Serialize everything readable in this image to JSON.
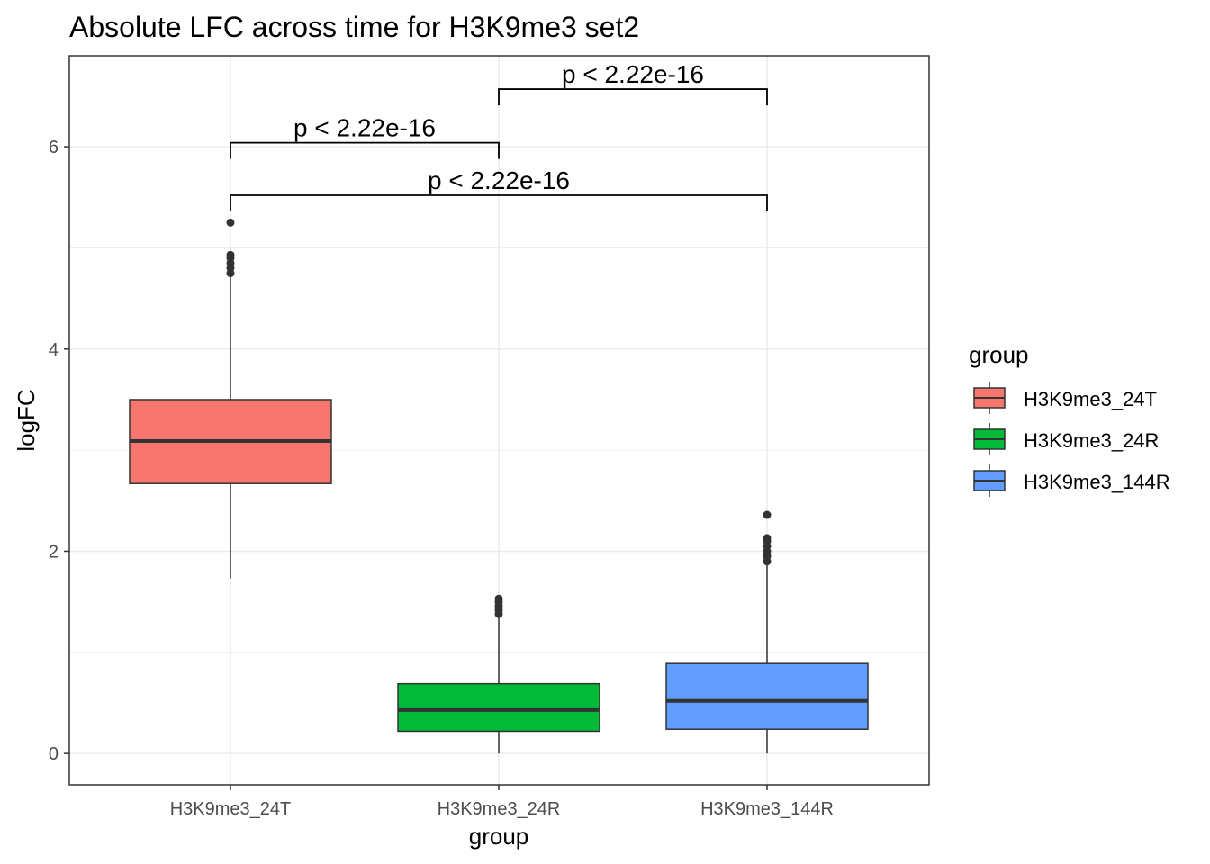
{
  "chart_data": {
    "type": "box",
    "title": "Absolute LFC across time for H3K9me3 set2",
    "xlabel": "group",
    "ylabel": "logFC",
    "ylim": [
      -0.31,
      6.9
    ],
    "yticks": [
      0,
      2,
      4,
      6
    ],
    "grid": true,
    "categories": [
      "H3K9me3_24T",
      "H3K9me3_24R",
      "H3K9me3_144R"
    ],
    "colors": [
      "#F8766D",
      "#00BA38",
      "#619CFF"
    ],
    "boxes": [
      {
        "name": "H3K9me3_24T",
        "whisker_low": 1.73,
        "q1": 2.67,
        "median": 3.09,
        "q3": 3.5,
        "whisker_high": 4.72,
        "outliers": [
          4.75,
          4.8,
          4.85,
          4.9,
          4.93,
          5.25
        ]
      },
      {
        "name": "H3K9me3_24R",
        "whisker_low": 0.0,
        "q1": 0.22,
        "median": 0.43,
        "q3": 0.69,
        "whisker_high": 1.36,
        "outliers": [
          1.38,
          1.42,
          1.46,
          1.5,
          1.53
        ]
      },
      {
        "name": "H3K9me3_144R",
        "whisker_low": 0.0,
        "q1": 0.24,
        "median": 0.52,
        "q3": 0.89,
        "whisker_high": 1.88,
        "outliers": [
          1.9,
          1.95,
          2.0,
          2.05,
          2.1,
          2.13,
          2.36
        ]
      }
    ],
    "comparisons": [
      {
        "from": 1,
        "to": 2,
        "y": 6.57,
        "label": "p < 2.22e-16"
      },
      {
        "from": 0,
        "to": 1,
        "y": 6.04,
        "label": "p < 2.22e-16"
      },
      {
        "from": 0,
        "to": 2,
        "y": 5.52,
        "label": "p < 2.22e-16"
      }
    ],
    "legend": {
      "title": "group",
      "position": "right",
      "entries": [
        "H3K9me3_24T",
        "H3K9me3_24R",
        "H3K9me3_144R"
      ]
    }
  }
}
